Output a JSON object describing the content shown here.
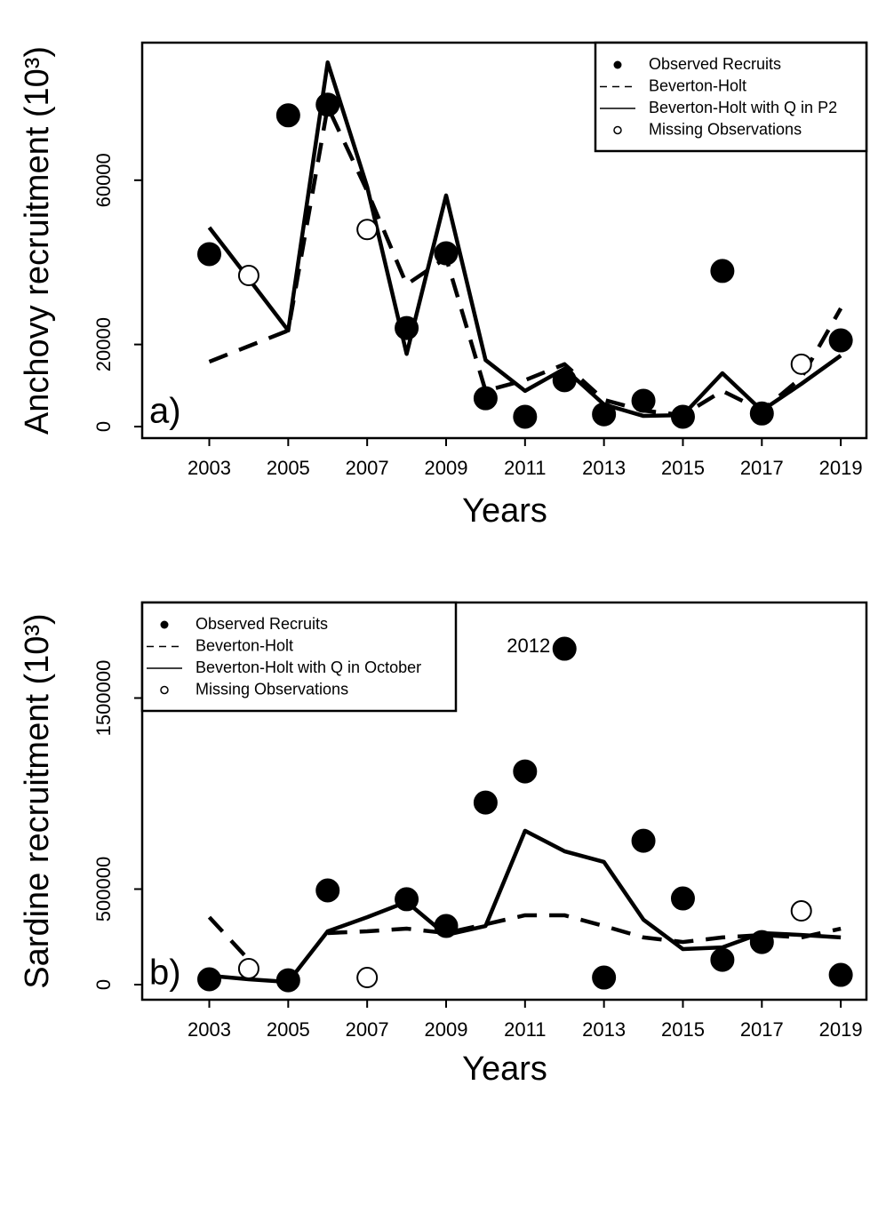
{
  "chart_data": [
    {
      "type": "line",
      "panel_label": "a)",
      "y_label": "Anchovy recruitment (10³)",
      "x_label": "Years",
      "x": [
        2003,
        2004,
        2005,
        2006,
        2007,
        2008,
        2009,
        2010,
        2011,
        2012,
        2013,
        2014,
        2015,
        2016,
        2017,
        2018,
        2019
      ],
      "xlim": [
        2001.3,
        2019.65
      ],
      "xticks": [
        2003,
        2005,
        2007,
        2009,
        2011,
        2013,
        2015,
        2017,
        2019
      ],
      "ylim": [
        -2800,
        93500
      ],
      "yticks": [
        0,
        20000,
        60000
      ],
      "legend": "top-right",
      "series": [
        {
          "name": "Observed Recruits",
          "style": "filled-point",
          "color": "#000000",
          "values": [
            42000,
            null,
            75800,
            78400,
            null,
            24000,
            42200,
            6900,
            2400,
            11300,
            3000,
            6300,
            2400,
            37900,
            3200,
            null,
            21000
          ]
        },
        {
          "name": "Beverton-Holt",
          "style": "dashed-line",
          "color": "#000000",
          "values": [
            15800,
            19600,
            23400,
            77900,
            57400,
            34600,
            41100,
            8700,
            11300,
            15200,
            6500,
            3900,
            2800,
            8700,
            3900,
            11900,
            28800
          ]
        },
        {
          "name": "Beverton-Holt with Q in P2",
          "style": "solid-line",
          "color": "#000000",
          "values": [
            48500,
            36000,
            23400,
            88700,
            58400,
            17700,
            56300,
            16200,
            8700,
            14100,
            5400,
            2600,
            2800,
            13000,
            3900,
            10400,
            17300
          ]
        },
        {
          "name": "Missing Observations",
          "style": "open-point",
          "color": "#000000",
          "values": [
            null,
            36800,
            null,
            null,
            48000,
            null,
            null,
            null,
            null,
            null,
            null,
            null,
            null,
            null,
            null,
            15200,
            null
          ]
        }
      ]
    },
    {
      "type": "line",
      "panel_label": "b)",
      "y_label": "Sardine recruitment (10³)",
      "x_label": "Years",
      "annotation": "2012",
      "x": [
        2003,
        2004,
        2005,
        2006,
        2007,
        2008,
        2009,
        2010,
        2011,
        2012,
        2013,
        2014,
        2015,
        2016,
        2017,
        2018,
        2019
      ],
      "xlim": [
        2001.3,
        2019.65
      ],
      "xticks": [
        2003,
        2005,
        2007,
        2009,
        2011,
        2013,
        2015,
        2017,
        2019
      ],
      "ylim": [
        -79000,
        2000000
      ],
      "yticks": [
        0,
        500000,
        1500000
      ],
      "legend": "top-left",
      "series": [
        {
          "name": "Observed Recruits",
          "style": "filled-point",
          "color": "#000000",
          "values": [
            28000,
            null,
            23000,
            493000,
            null,
            447000,
            307000,
            953000,
            1116000,
            1758000,
            37000,
            753000,
            451000,
            130000,
            223000,
            null,
            51000
          ]
        },
        {
          "name": "Beverton-Holt",
          "style": "dashed-line",
          "color": "#000000",
          "values": [
            353000,
            130000,
            null,
            270000,
            279000,
            293000,
            270000,
            316000,
            363000,
            363000,
            307000,
            247000,
            223000,
            247000,
            260000,
            247000,
            293000
          ]
        },
        {
          "name": "Beverton-Holt with Q in October",
          "style": "solid-line",
          "color": "#000000",
          "values": [
            47000,
            28000,
            14000,
            279000,
            353000,
            433000,
            260000,
            307000,
            805000,
            698000,
            642000,
            340000,
            186000,
            195000,
            270000,
            260000,
            247000
          ]
        },
        {
          "name": "Missing Observations",
          "style": "open-point",
          "color": "#000000",
          "values": [
            null,
            84000,
            null,
            null,
            37000,
            null,
            null,
            null,
            null,
            null,
            null,
            null,
            null,
            null,
            null,
            386000,
            null
          ]
        }
      ]
    }
  ]
}
